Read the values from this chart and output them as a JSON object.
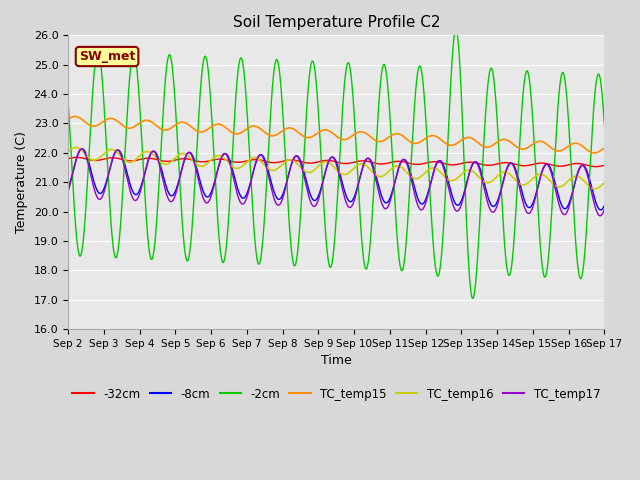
{
  "title": "Soil Temperature Profile C2",
  "xlabel": "Time",
  "ylabel": "Temperature (C)",
  "ylim": [
    16.0,
    26.0
  ],
  "yticks": [
    16.0,
    17.0,
    18.0,
    19.0,
    20.0,
    21.0,
    22.0,
    23.0,
    24.0,
    25.0,
    26.0
  ],
  "xtick_labels": [
    "Sep 2",
    "Sep 3",
    "Sep 4",
    "Sep 5",
    "Sep 6",
    "Sep 7",
    "Sep 8",
    "Sep 9",
    "Sep 10",
    "Sep 11",
    "Sep 12",
    "Sep 13",
    "Sep 14",
    "Sep 15",
    "Sep 16",
    "Sep 17"
  ],
  "annotation": "SW_met",
  "annotation_bg": "#FFFF99",
  "annotation_border": "#8B0000",
  "series_colors": {
    "-32cm": "#FF0000",
    "-8cm": "#0000FF",
    "-2cm": "#00CC00",
    "TC_temp15": "#FF8C00",
    "TC_temp16": "#CCCC00",
    "TC_temp17": "#9900CC"
  },
  "fig_bg": "#D8D8D8",
  "plot_bg": "#E8E8E8",
  "grid_color": "#FFFFFF"
}
